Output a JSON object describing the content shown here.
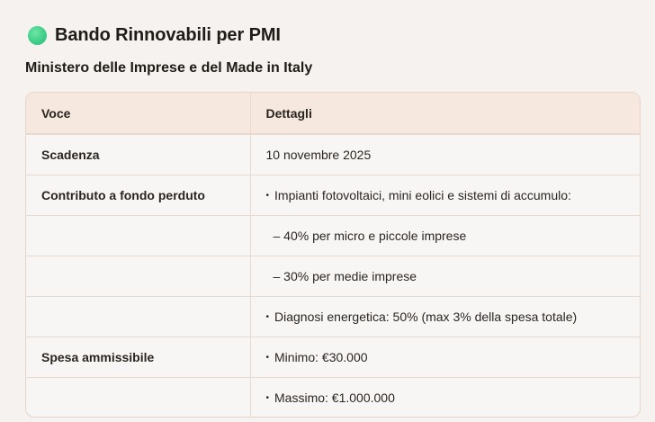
{
  "header": {
    "icon": "green-circle-icon",
    "icon_color": "#3fcf8a",
    "title": "Bando Rinnovabili per PMI",
    "subtitle": "Ministero delle Imprese e del Made in Italy"
  },
  "table": {
    "columns": [
      "Voce",
      "Dettagli"
    ],
    "rows": [
      {
        "voce": "Scadenza",
        "dettagli": "10 novembre 2025",
        "marker": ""
      },
      {
        "voce": "Contributo a fondo perduto",
        "dettagli": "Impianti fotovoltaici, mini eolici e sistemi di accumulo:",
        "marker": "•"
      },
      {
        "voce": "",
        "dettagli": "– 40% per micro e piccole imprese",
        "marker": ""
      },
      {
        "voce": "",
        "dettagli": "– 30% per medie imprese",
        "marker": ""
      },
      {
        "voce": "",
        "dettagli": "Diagnosi energetica: 50% (max 3% della spesa totale)",
        "marker": "•"
      },
      {
        "voce": "Spesa ammissibile",
        "dettagli": "Minimo: €30.000",
        "marker": "•"
      },
      {
        "voce": "",
        "dettagli": "Massimo: €1.000.000",
        "marker": "•"
      }
    ]
  }
}
